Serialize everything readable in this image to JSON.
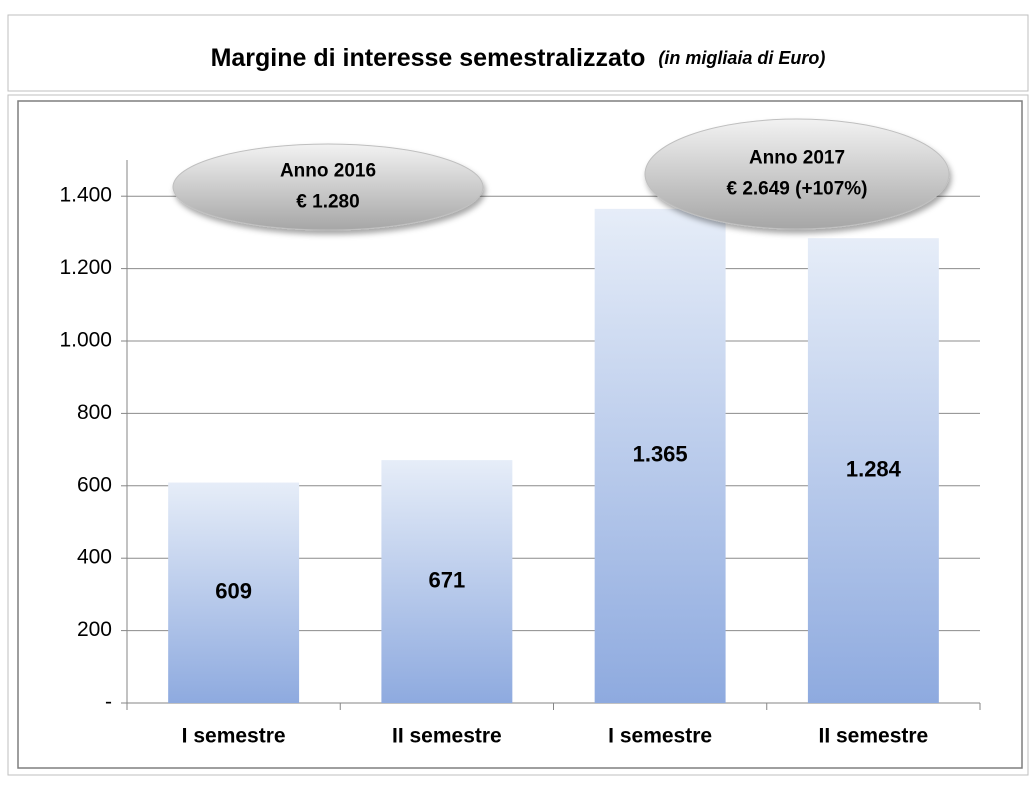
{
  "chart_data": {
    "type": "bar",
    "title": "Margine di interesse semestralizzato",
    "subtitle": "(in migliaia di Euro)",
    "categories": [
      "I semestre",
      "II semestre",
      "I semestre",
      "II semestre"
    ],
    "values": [
      609,
      671,
      1365,
      1284
    ],
    "value_labels": [
      "609",
      "671",
      "1.365",
      "1.284"
    ],
    "ylim": [
      0,
      1500
    ],
    "yticks": [
      {
        "value": 0,
        "label": "-"
      },
      200,
      400,
      600,
      800,
      {
        "value": 1000,
        "label": "1.000"
      },
      {
        "value": 1200,
        "label": "1.200"
      },
      {
        "value": 1400,
        "label": "1.400"
      }
    ],
    "grid": true,
    "annotations": [
      {
        "lines": [
          "Anno 2016",
          "€ 1.280"
        ]
      },
      {
        "lines": [
          "Anno 2017",
          "€ 2.649 (+107%)"
        ]
      }
    ]
  }
}
